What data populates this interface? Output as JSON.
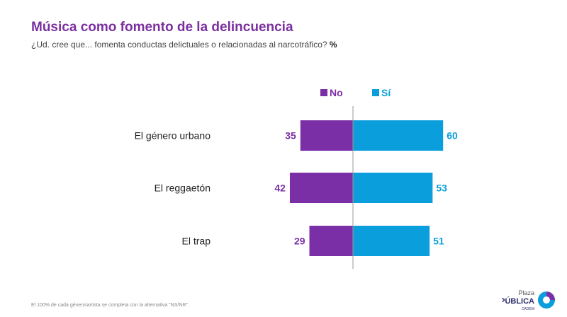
{
  "title": "Música como fomento de la delincuencia",
  "subtitle": "¿Ud. cree que... fomenta conductas delictuales o relacionadas al narcotráfico?",
  "subtitle_unit": "%",
  "footnote": "El 100% de cada género/artista se completa con la alternativa \"NS/NR\".",
  "logo": {
    "line1": "Plaza",
    "line2": "PÚBLICA",
    "line3": "CADEM"
  },
  "colors": {
    "no": "#7b2fa6",
    "si": "#0a9fdc",
    "title": "#7b2fa0"
  },
  "chart_data": {
    "type": "bar",
    "orientation": "diverging-horizontal",
    "categories": [
      "El género urbano",
      "El reggaetón",
      "El trap"
    ],
    "series": [
      {
        "name": "No",
        "values": [
          35,
          42,
          29
        ]
      },
      {
        "name": "Sí",
        "values": [
          60,
          53,
          51
        ]
      }
    ],
    "legend": "top"
  }
}
